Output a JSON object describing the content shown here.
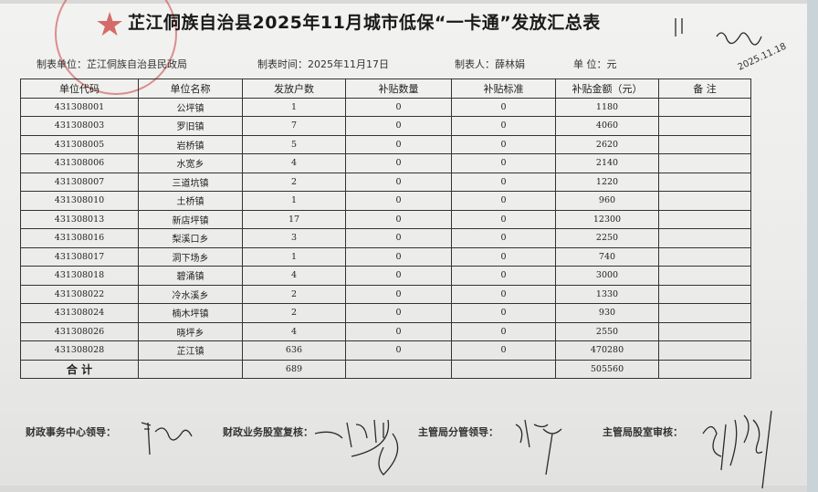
{
  "title": "芷江侗族自治县2025年11月城市低保“一卡通”发放汇总表",
  "meta": {
    "unit_label": "制表单位：芷江侗族自治县民政局",
    "time_label": "制表时间：2025年11月17日",
    "preparer_label": "制表人：薛林娟",
    "currency_label": "单  位：元"
  },
  "handwritten_date": "2025.11.18",
  "table": {
    "headers": [
      "单位代码",
      "单位名称",
      "发放户数",
      "补贴数量",
      "补贴标准",
      "补贴金额（元）",
      "备  注"
    ],
    "rows": [
      [
        "431308001",
        "公坪镇",
        "1",
        "0",
        "0",
        "1180",
        ""
      ],
      [
        "431308003",
        "罗旧镇",
        "7",
        "0",
        "0",
        "4060",
        ""
      ],
      [
        "431308005",
        "岩桥镇",
        "5",
        "0",
        "0",
        "2620",
        ""
      ],
      [
        "431308006",
        "水宽乡",
        "4",
        "0",
        "0",
        "2140",
        ""
      ],
      [
        "431308007",
        "三道坑镇",
        "2",
        "0",
        "0",
        "1220",
        ""
      ],
      [
        "431308010",
        "土桥镇",
        "1",
        "0",
        "0",
        "960",
        ""
      ],
      [
        "431308013",
        "新店坪镇",
        "17",
        "0",
        "0",
        "12300",
        ""
      ],
      [
        "431308016",
        "梨溪口乡",
        "3",
        "0",
        "0",
        "2250",
        ""
      ],
      [
        "431308017",
        "洞下场乡",
        "1",
        "0",
        "0",
        "740",
        ""
      ],
      [
        "431308018",
        "碧涌镇",
        "4",
        "0",
        "0",
        "3000",
        ""
      ],
      [
        "431308022",
        "冷水溪乡",
        "2",
        "0",
        "0",
        "1330",
        ""
      ],
      [
        "431308024",
        "楠木坪镇",
        "2",
        "0",
        "0",
        "930",
        ""
      ],
      [
        "431308026",
        "晓坪乡",
        "4",
        "0",
        "0",
        "2550",
        ""
      ],
      [
        "431308028",
        "芷江镇",
        "636",
        "0",
        "0",
        "470280",
        ""
      ]
    ],
    "total": {
      "label": "合  计",
      "households": "689",
      "amount": "505560"
    }
  },
  "footer": {
    "finance_center": "财政事务中心领导：",
    "finance_review": "财政业务股室复核：",
    "bureau_leader": "主管局分管领导：",
    "bureau_review": "主管局股室审核："
  },
  "colors": {
    "stamp": "#c83c3c",
    "ink": "#222222"
  }
}
